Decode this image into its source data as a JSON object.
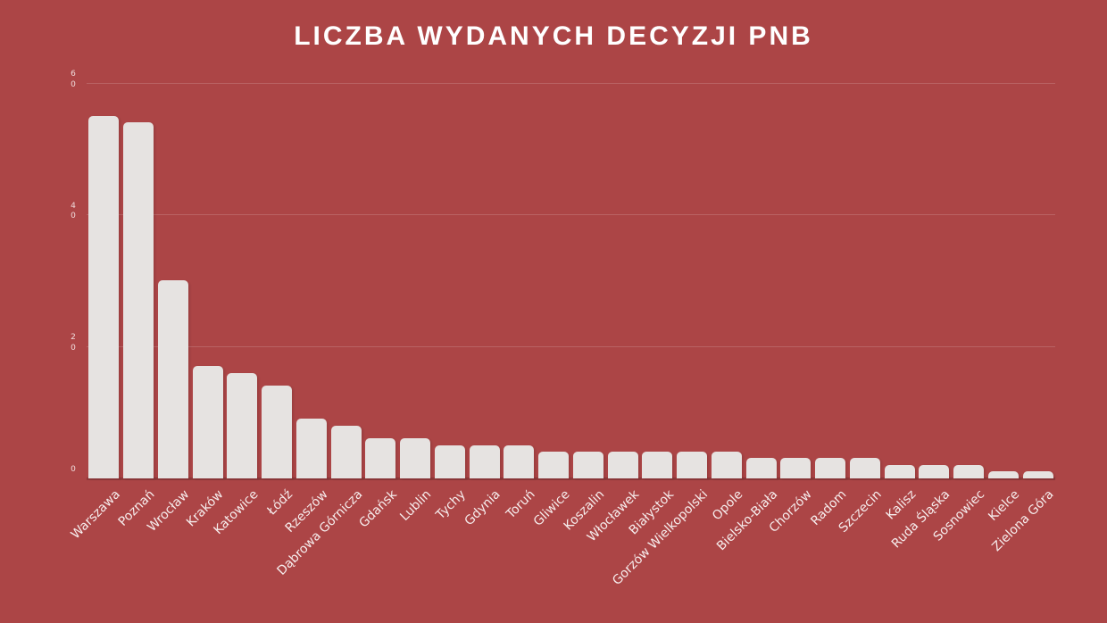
{
  "chart_data": {
    "type": "bar",
    "title": "LICZBA WYDANYCH DECYZJI PNB",
    "categories": [
      "Warszawa",
      "Poznań",
      "Wrocław",
      "Kraków",
      "Katowice",
      "Łódź",
      "Rzeszów",
      "Dąbrowa Górnicza",
      "Gdańsk",
      "Lublin",
      "Tychy",
      "Gdynia",
      "Toruń",
      "Gliwice",
      "Koszalin",
      "Włocławek",
      "Białystok",
      "Gorzów Wielkopolski",
      "Opole",
      "Bielsko-Biała",
      "Chorzów",
      "Radom",
      "Szczecin",
      "Kalisz",
      "Ruda Śląska",
      "Sosnowiec",
      "Kielce",
      "Zielona Góra"
    ],
    "values": [
      55,
      54,
      30,
      17,
      16,
      14,
      9,
      8,
      6,
      6,
      5,
      5,
      5,
      4,
      4,
      4,
      4,
      4,
      4,
      3,
      3,
      3,
      3,
      2,
      2,
      2,
      1,
      1
    ],
    "xlabel": "",
    "ylabel": "",
    "ylim": [
      0,
      60
    ],
    "yticks": [
      60,
      40,
      20,
      0
    ],
    "grid": "on",
    "legend": "none",
    "colors": {
      "background": "#ac4546",
      "bar": "#e6e3e1",
      "grid": "rgba(255,255,255,0.16)",
      "baseline_shadow": "rgba(0,0,0,0.16)",
      "title_text": "#ffffff",
      "ytick_text": "#f0dcdc",
      "xlabel_text": "#f7eeee"
    }
  }
}
